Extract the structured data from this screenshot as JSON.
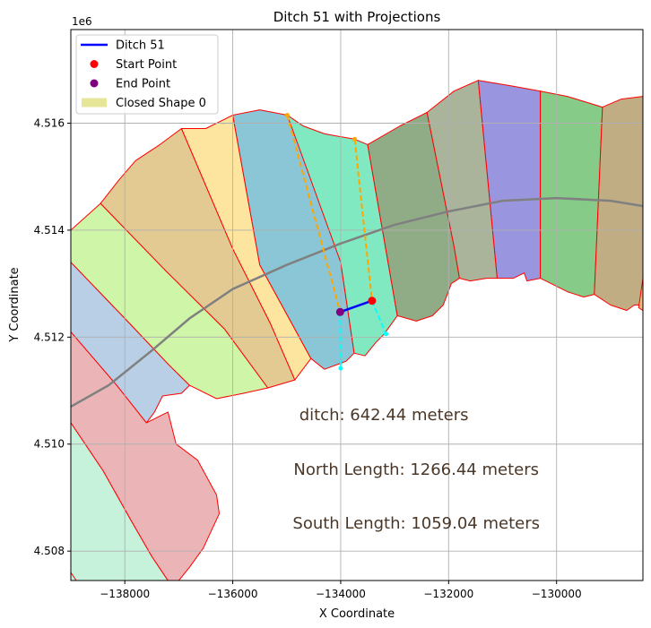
{
  "chart_data": {
    "type": "map-plot",
    "title": "Ditch 51 with Projections",
    "xlabel": "X Coordinate",
    "ylabel": "Y Coordinate",
    "y_offset_label": "1e6",
    "xlim": [
      -139000,
      -128400
    ],
    "ylim": [
      4507450,
      4517750
    ],
    "grid": true,
    "x_ticks": [
      -138000,
      -136000,
      -134000,
      -132000,
      -130000
    ],
    "x_tick_labels": [
      "−138000",
      "−136000",
      "−134000",
      "−132000",
      "−130000"
    ],
    "y_ticks": [
      4508000,
      4510000,
      4512000,
      4514000,
      4516000
    ],
    "y_tick_labels": [
      "4.508",
      "4.510",
      "4.512",
      "4.514",
      "4.516"
    ],
    "legend": {
      "placement": "top-left",
      "items": [
        {
          "label": "Ditch 51",
          "kind": "line",
          "color": "#0000ff"
        },
        {
          "label": "Start Point",
          "kind": "marker",
          "color": "#ff0000"
        },
        {
          "label": "End Point",
          "kind": "marker",
          "color": "#800080"
        },
        {
          "label": "Closed Shape 0",
          "kind": "patch",
          "color": "#e6e699"
        }
      ]
    },
    "annotations": [
      {
        "text": "ditch: 642.44 meters",
        "x": -133200,
        "y": 4510450
      },
      {
        "text": "North Length: 1266.44 meters",
        "x": -132600,
        "y": 4509430
      },
      {
        "text": "South Length: 1059.04 meters",
        "x": -132600,
        "y": 4508420
      }
    ],
    "ditch": {
      "color": "#0000ff",
      "start": [
        -133420,
        4512680
      ],
      "end": [
        -134010,
        4512470
      ]
    },
    "projections": {
      "north": {
        "color": "#ffa500",
        "lines": [
          [
            [
              -134990,
              4516150
            ],
            [
              -134010,
              4512470
            ]
          ],
          [
            [
              -133740,
              4515700
            ],
            [
              -133420,
              4512680
            ]
          ]
        ]
      },
      "south": {
        "color": "#00ffff",
        "lines": [
          [
            [
              -134010,
              4512470
            ],
            [
              -134000,
              4511420
            ]
          ],
          [
            [
              -133420,
              4512680
            ],
            [
              -133160,
              4512060
            ]
          ]
        ]
      }
    },
    "centerline": {
      "color": "#808080",
      "points": [
        [
          -139000,
          4510700
        ],
        [
          -138300,
          4511100
        ],
        [
          -137500,
          4511750
        ],
        [
          -136800,
          4512350
        ],
        [
          -136000,
          4512900
        ],
        [
          -135000,
          4513350
        ],
        [
          -134000,
          4513750
        ],
        [
          -133000,
          4514100
        ],
        [
          -132000,
          4514350
        ],
        [
          -131000,
          4514550
        ],
        [
          -130000,
          4514600
        ],
        [
          -129000,
          4514550
        ],
        [
          -128400,
          4514450
        ]
      ]
    },
    "outline_color": "#ff0000",
    "polygons": [
      {
        "fill": "#c6f2dc",
        "points": [
          [
            -139000,
            4510400
          ],
          [
            -138400,
            4509500
          ],
          [
            -137900,
            4508600
          ],
          [
            -137500,
            4507900
          ],
          [
            -137200,
            4507450
          ],
          [
            -139000,
            4507450
          ]
        ]
      },
      {
        "fill": "#ebb5b8",
        "points": [
          [
            -139000,
            4512100
          ],
          [
            -138150,
            4511100
          ],
          [
            -137600,
            4510400
          ],
          [
            -137200,
            4510600
          ],
          [
            -137050,
            4510000
          ],
          [
            -136650,
            4509700
          ],
          [
            -136300,
            4509050
          ],
          [
            -136250,
            4508700
          ],
          [
            -136550,
            4508050
          ],
          [
            -136800,
            4507700
          ],
          [
            -137000,
            4507450
          ],
          [
            -137200,
            4507450
          ],
          [
            -137500,
            4507900
          ],
          [
            -137900,
            4508600
          ],
          [
            -138400,
            4509500
          ],
          [
            -139000,
            4510400
          ]
        ]
      },
      {
        "fill": "#b8cfe5",
        "points": [
          [
            -139000,
            4513400
          ],
          [
            -138000,
            4512350
          ],
          [
            -137200,
            4511500
          ],
          [
            -136800,
            4511100
          ],
          [
            -136950,
            4510950
          ],
          [
            -137300,
            4510900
          ],
          [
            -137450,
            4510600
          ],
          [
            -137600,
            4510400
          ],
          [
            -138150,
            4511100
          ],
          [
            -139000,
            4512100
          ]
        ]
      },
      {
        "fill": "#cff5a8",
        "points": [
          [
            -139000,
            4514000
          ],
          [
            -138450,
            4514500
          ],
          [
            -137250,
            4513250
          ],
          [
            -136150,
            4512150
          ],
          [
            -135350,
            4511050
          ],
          [
            -135800,
            4510950
          ],
          [
            -136300,
            4510850
          ],
          [
            -136800,
            4511100
          ],
          [
            -137200,
            4511500
          ],
          [
            -138000,
            4512350
          ],
          [
            -139000,
            4513400
          ]
        ]
      },
      {
        "fill": "#e2ca92",
        "points": [
          [
            -138450,
            4514500
          ],
          [
            -138100,
            4514950
          ],
          [
            -137800,
            4515300
          ],
          [
            -137350,
            4515600
          ],
          [
            -136950,
            4515900
          ],
          [
            -136000,
            4513650
          ],
          [
            -135300,
            4512250
          ],
          [
            -134850,
            4511200
          ],
          [
            -135350,
            4511050
          ],
          [
            -136150,
            4512150
          ],
          [
            -137250,
            4513250
          ]
        ]
      },
      {
        "fill": "#fde49f",
        "points": [
          [
            -136950,
            4515900
          ],
          [
            -136500,
            4515900
          ],
          [
            -136000,
            4516150
          ],
          [
            -135500,
            4513350
          ],
          [
            -134550,
            4511600
          ],
          [
            -134850,
            4511200
          ],
          [
            -135300,
            4512250
          ],
          [
            -136000,
            4513650
          ]
        ]
      },
      {
        "fill": "#8ac6d5",
        "points": [
          [
            -136000,
            4516150
          ],
          [
            -135500,
            4516250
          ],
          [
            -134990,
            4516150
          ],
          [
            -134700,
            4515950
          ],
          [
            -134000,
            4513400
          ],
          [
            -133750,
            4511700
          ],
          [
            -133900,
            4511550
          ],
          [
            -134300,
            4511400
          ],
          [
            -134550,
            4511600
          ],
          [
            -135500,
            4513350
          ]
        ]
      },
      {
        "fill": "#80e9c2",
        "points": [
          [
            -134990,
            4516150
          ],
          [
            -134700,
            4515950
          ],
          [
            -134300,
            4515800
          ],
          [
            -133740,
            4515700
          ],
          [
            -133500,
            4515600
          ],
          [
            -132950,
            4512400
          ],
          [
            -133200,
            4512050
          ],
          [
            -133350,
            4511900
          ],
          [
            -133550,
            4511650
          ],
          [
            -133750,
            4511700
          ],
          [
            -134000,
            4513400
          ]
        ]
      },
      {
        "fill": "#8fac86",
        "points": [
          [
            -133500,
            4515600
          ],
          [
            -132900,
            4515950
          ],
          [
            -132400,
            4516200
          ],
          [
            -131900,
            4513700
          ],
          [
            -131800,
            4513100
          ],
          [
            -131950,
            4513000
          ],
          [
            -132100,
            4512600
          ],
          [
            -132300,
            4512400
          ],
          [
            -132600,
            4512300
          ],
          [
            -132950,
            4512400
          ]
        ]
      },
      {
        "fill": "#a9b49b",
        "points": [
          [
            -132400,
            4516200
          ],
          [
            -131900,
            4516600
          ],
          [
            -131450,
            4516800
          ],
          [
            -131100,
            4513100
          ],
          [
            -131300,
            4513100
          ],
          [
            -131600,
            4513050
          ],
          [
            -131800,
            4513100
          ],
          [
            -131900,
            4513700
          ]
        ]
      },
      {
        "fill": "#9a95df",
        "points": [
          [
            -131450,
            4516800
          ],
          [
            -130850,
            4516700
          ],
          [
            -130300,
            4516600
          ],
          [
            -130300,
            4513100
          ],
          [
            -130550,
            4513050
          ],
          [
            -130600,
            4513200
          ],
          [
            -130800,
            4513100
          ],
          [
            -131100,
            4513100
          ]
        ]
      },
      {
        "fill": "#86cb87",
        "points": [
          [
            -130300,
            4516600
          ],
          [
            -129800,
            4516500
          ],
          [
            -129150,
            4516300
          ],
          [
            -129300,
            4512800
          ],
          [
            -129500,
            4512750
          ],
          [
            -129800,
            4512850
          ],
          [
            -130300,
            4513100
          ]
        ]
      },
      {
        "fill": "#c0ad84",
        "points": [
          [
            -129150,
            4516300
          ],
          [
            -128800,
            4516450
          ],
          [
            -128400,
            4516500
          ],
          [
            -128400,
            4512600
          ],
          [
            -128560,
            4512600
          ],
          [
            -128700,
            4512500
          ],
          [
            -129000,
            4512600
          ],
          [
            -129300,
            4512800
          ]
        ]
      },
      {
        "fill": "#f2b97a",
        "points": [
          [
            -128400,
            4513100
          ],
          [
            -128400,
            4512500
          ],
          [
            -128480,
            4512550
          ]
        ]
      },
      {
        "fill": "#c6f2dc",
        "points": [
          [
            -139000,
            4507600
          ],
          [
            -138900,
            4507450
          ],
          [
            -139000,
            4507450
          ]
        ]
      }
    ]
  }
}
